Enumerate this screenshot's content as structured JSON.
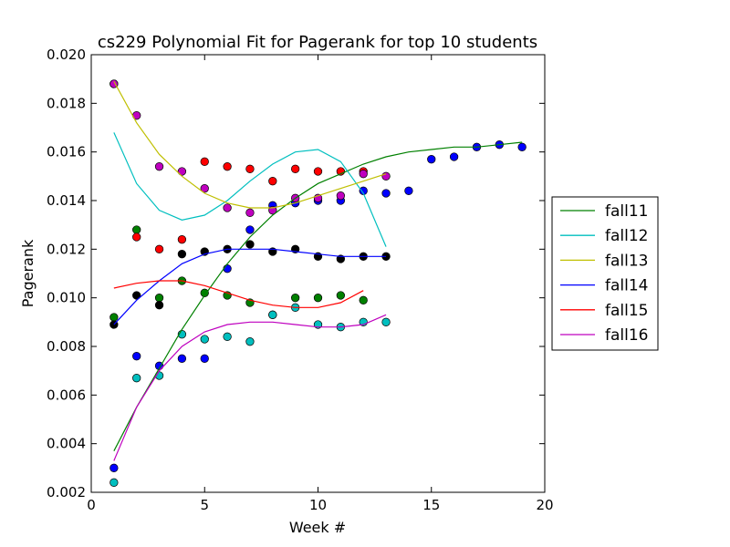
{
  "chart_data": {
    "type": "scatter",
    "title": "cs229 Polynomial Fit for Pagerank for top 10 students",
    "xlabel": "Week #",
    "ylabel": "Pagerank",
    "xlim": [
      0,
      20
    ],
    "ylim": [
      0.002,
      0.02
    ],
    "xticks": [
      0,
      5,
      10,
      15,
      20
    ],
    "xtick_labels": [
      "0",
      "5",
      "10",
      "15",
      "20"
    ],
    "yticks": [
      0.002,
      0.004,
      0.006,
      0.008,
      0.01,
      0.012,
      0.014,
      0.016,
      0.018,
      0.02
    ],
    "ytick_labels": [
      "0.002",
      "0.004",
      "0.006",
      "0.008",
      "0.010",
      "0.012",
      "0.014",
      "0.016",
      "0.018",
      "0.020"
    ],
    "legend_position": "right-outside",
    "scatter_series": [
      {
        "name": "points-blue",
        "color": "#0000ff",
        "points": [
          [
            1,
            0.003
          ],
          [
            2,
            0.0076
          ],
          [
            3,
            0.0072
          ],
          [
            4,
            0.0075
          ],
          [
            5,
            0.0075
          ],
          [
            6,
            0.0112
          ],
          [
            7,
            0.0128
          ],
          [
            8,
            0.0138
          ],
          [
            9,
            0.0139
          ],
          [
            10,
            0.014
          ],
          [
            11,
            0.014
          ],
          [
            12,
            0.0144
          ],
          [
            13,
            0.0143
          ],
          [
            14,
            0.0144
          ],
          [
            15,
            0.0157
          ],
          [
            16,
            0.0158
          ],
          [
            17,
            0.0162
          ],
          [
            18,
            0.0163
          ],
          [
            19,
            0.0162
          ]
        ]
      },
      {
        "name": "points-green",
        "color": "#008000",
        "points": [
          [
            1,
            0.0092
          ],
          [
            2,
            0.0128
          ],
          [
            3,
            0.01
          ],
          [
            4,
            0.0107
          ],
          [
            5,
            0.0102
          ],
          [
            6,
            0.0101
          ],
          [
            7,
            0.0098
          ],
          [
            8,
            0.0093
          ],
          [
            9,
            0.01
          ],
          [
            10,
            0.01
          ],
          [
            11,
            0.0101
          ],
          [
            12,
            0.0099
          ]
        ]
      },
      {
        "name": "points-red",
        "color": "#ff0000",
        "points": [
          [
            1,
            0.0188
          ],
          [
            2,
            0.0125
          ],
          [
            3,
            0.012
          ],
          [
            4,
            0.0124
          ],
          [
            5,
            0.0156
          ],
          [
            6,
            0.0154
          ],
          [
            7,
            0.0153
          ],
          [
            8,
            0.0148
          ],
          [
            9,
            0.0153
          ],
          [
            10,
            0.0152
          ],
          [
            11,
            0.0152
          ],
          [
            12,
            0.0152
          ]
        ]
      },
      {
        "name": "points-cyan",
        "color": "#00bfbf",
        "points": [
          [
            1,
            0.0024
          ],
          [
            2,
            0.0067
          ],
          [
            3,
            0.0068
          ],
          [
            4,
            0.0085
          ],
          [
            5,
            0.0083
          ],
          [
            6,
            0.0084
          ],
          [
            7,
            0.0082
          ],
          [
            8,
            0.0093
          ],
          [
            9,
            0.0096
          ],
          [
            10,
            0.0089
          ],
          [
            11,
            0.0088
          ],
          [
            12,
            0.009
          ],
          [
            13,
            0.009
          ]
        ]
      },
      {
        "name": "points-magenta",
        "color": "#bf00bf",
        "points": [
          [
            1,
            0.0188
          ],
          [
            2,
            0.0175
          ],
          [
            3,
            0.0154
          ],
          [
            4,
            0.0152
          ],
          [
            5,
            0.0145
          ],
          [
            6,
            0.0137
          ],
          [
            7,
            0.0135
          ],
          [
            8,
            0.0136
          ],
          [
            9,
            0.0141
          ],
          [
            10,
            0.0141
          ],
          [
            11,
            0.0142
          ],
          [
            12,
            0.0151
          ],
          [
            13,
            0.015
          ]
        ]
      },
      {
        "name": "points-black",
        "color": "#000000",
        "points": [
          [
            1,
            0.0089
          ],
          [
            2,
            0.0101
          ],
          [
            3,
            0.0097
          ],
          [
            4,
            0.0118
          ],
          [
            5,
            0.0119
          ],
          [
            6,
            0.012
          ],
          [
            7,
            0.0122
          ],
          [
            8,
            0.0119
          ],
          [
            9,
            0.012
          ],
          [
            10,
            0.0117
          ],
          [
            11,
            0.0116
          ],
          [
            12,
            0.0117
          ],
          [
            13,
            0.0117
          ]
        ]
      }
    ],
    "series": [
      {
        "name": "fall11",
        "color": "#008000",
        "x": [
          1,
          2,
          3,
          4,
          5,
          6,
          7,
          8,
          9,
          10,
          11,
          12,
          13,
          14,
          15,
          16,
          17,
          18,
          19
        ],
        "values": [
          0.0037,
          0.0055,
          0.0071,
          0.0087,
          0.0101,
          0.0114,
          0.0125,
          0.0134,
          0.0141,
          0.0147,
          0.0151,
          0.0155,
          0.0158,
          0.016,
          0.0161,
          0.0162,
          0.0162,
          0.0163,
          0.0164
        ]
      },
      {
        "name": "fall12",
        "color": "#00bfbf",
        "x": [
          1,
          2,
          3,
          4,
          5,
          6,
          7,
          8,
          9,
          10,
          11,
          12,
          13
        ],
        "values": [
          0.0168,
          0.0147,
          0.0136,
          0.0132,
          0.0134,
          0.014,
          0.0148,
          0.0155,
          0.016,
          0.0161,
          0.0156,
          0.0143,
          0.0121
        ]
      },
      {
        "name": "fall13",
        "color": "#bfbf00",
        "x": [
          1,
          2,
          3,
          4,
          5,
          6,
          7,
          8,
          9,
          10,
          11,
          12,
          13
        ],
        "values": [
          0.0189,
          0.0172,
          0.0159,
          0.015,
          0.0143,
          0.0139,
          0.0137,
          0.0137,
          0.0139,
          0.0142,
          0.0145,
          0.0148,
          0.0151
        ]
      },
      {
        "name": "fall14",
        "color": "#0000ff",
        "x": [
          1,
          2,
          3,
          4,
          5,
          6,
          7,
          8,
          9,
          10,
          11,
          12,
          13
        ],
        "values": [
          0.0089,
          0.0099,
          0.0107,
          0.0114,
          0.0118,
          0.012,
          0.012,
          0.012,
          0.0119,
          0.0118,
          0.0117,
          0.0117,
          0.0117
        ]
      },
      {
        "name": "fall15",
        "color": "#ff0000",
        "x": [
          1,
          2,
          3,
          4,
          5,
          6,
          7,
          8,
          9,
          10,
          11,
          12
        ],
        "values": [
          0.0104,
          0.0106,
          0.0107,
          0.0107,
          0.0105,
          0.0102,
          0.0099,
          0.0097,
          0.0096,
          0.0096,
          0.0098,
          0.0103
        ]
      },
      {
        "name": "fall16",
        "color": "#bf00bf",
        "x": [
          1,
          2,
          3,
          4,
          5,
          6,
          7,
          8,
          9,
          10,
          11,
          12,
          13
        ],
        "values": [
          0.0033,
          0.0055,
          0.007,
          0.008,
          0.0086,
          0.0089,
          0.009,
          0.009,
          0.0089,
          0.0088,
          0.0088,
          0.0089,
          0.0093
        ]
      }
    ]
  }
}
